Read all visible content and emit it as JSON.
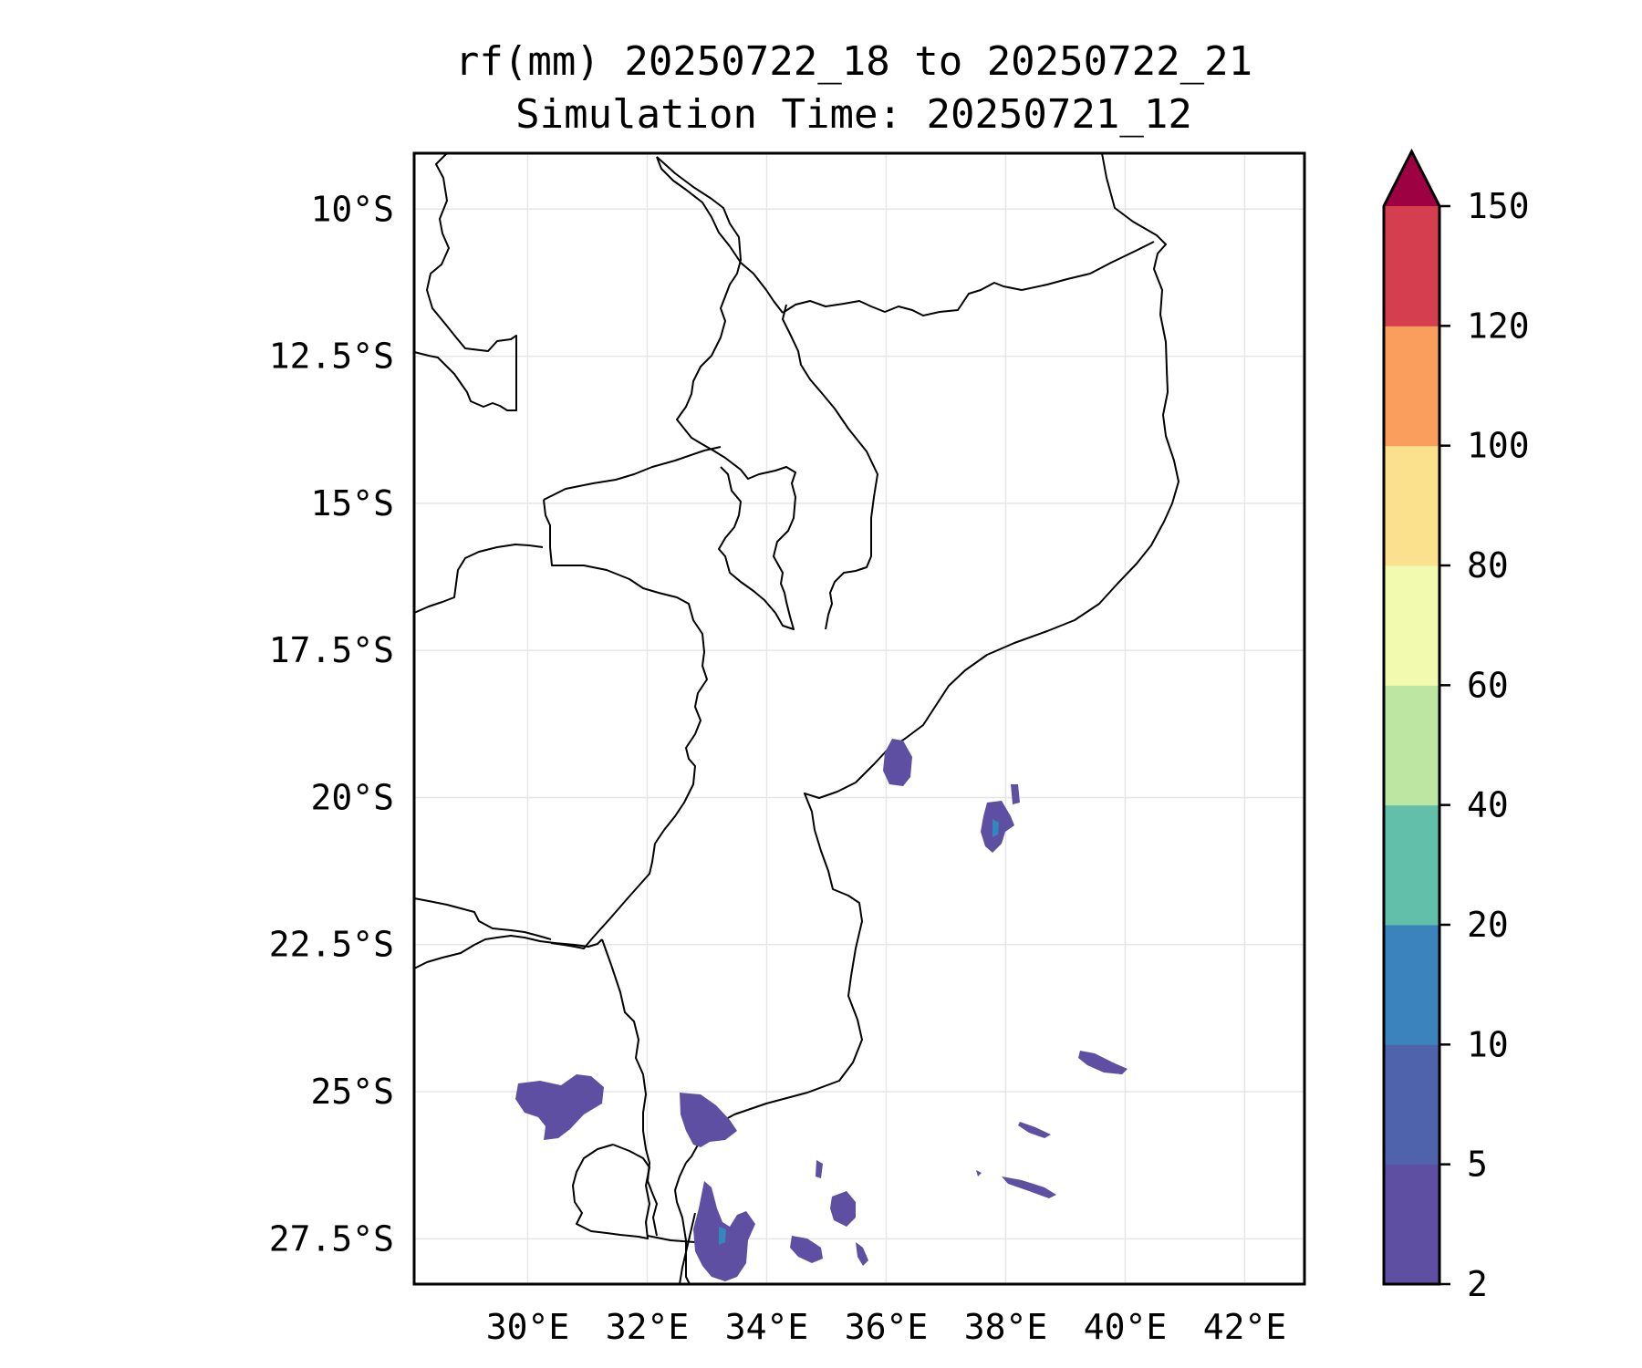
{
  "title": {
    "line1": "rf(mm) 20250722_18 to 20250722_21",
    "line2": "Simulation Time: 20250721_12"
  },
  "map": {
    "lon_range": [
      28.1,
      43.0
    ],
    "lat_range": [
      -28.27,
      -9.05
    ],
    "lon_ticks": [
      30,
      32,
      34,
      36,
      38,
      40,
      42
    ],
    "lon_tick_labels": [
      "30°E",
      "32°E",
      "34°E",
      "36°E",
      "38°E",
      "40°E",
      "42°E"
    ],
    "lat_ticks": [
      -10,
      -12.5,
      -15,
      -17.5,
      -20,
      -22.5,
      -25,
      -27.5
    ],
    "lat_tick_labels": [
      "10°S",
      "12.5°S",
      "15°S",
      "17.5°S",
      "20°S",
      "22.5°S",
      "25°S",
      "27.5°S"
    ],
    "grid": true,
    "features": "coastlines and country borders",
    "rain_color_main": "#5e4fa2",
    "rain_color_secondary": "#3288bd"
  },
  "colorbar": {
    "levels": [
      2,
      5,
      10,
      20,
      40,
      60,
      80,
      100,
      120,
      150
    ],
    "level_labels": [
      "2",
      "5",
      "10",
      "20",
      "40",
      "60",
      "80",
      "100",
      "120",
      "150"
    ],
    "colors": [
      "#5e4fa2",
      "#4f62ac",
      "#3a83bd",
      "#62bfaa",
      "#bde6a3",
      "#f2faaf",
      "#fbe08d",
      "#f99e5c",
      "#d53e4f"
    ],
    "extend_color": "#9e0142",
    "extend": "max"
  }
}
